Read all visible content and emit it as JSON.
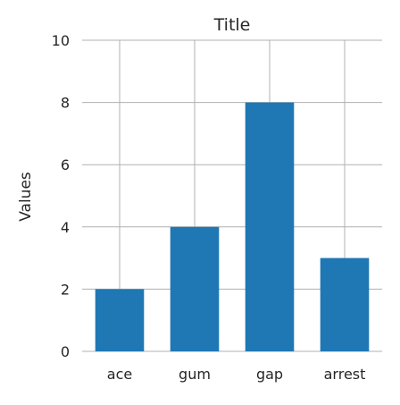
{
  "chart_data": {
    "type": "bar",
    "title": "Title",
    "xlabel": "",
    "ylabel": "Values",
    "categories": [
      "ace",
      "gum",
      "gap",
      "arrest"
    ],
    "values": [
      2,
      4,
      8,
      3
    ],
    "ylim": [
      0,
      10
    ],
    "yticks": [
      "0",
      "2",
      "4",
      "6",
      "8",
      "10"
    ],
    "grid": true,
    "bar_color": "#1f77b4",
    "grid_color": "#b0b0b0"
  }
}
